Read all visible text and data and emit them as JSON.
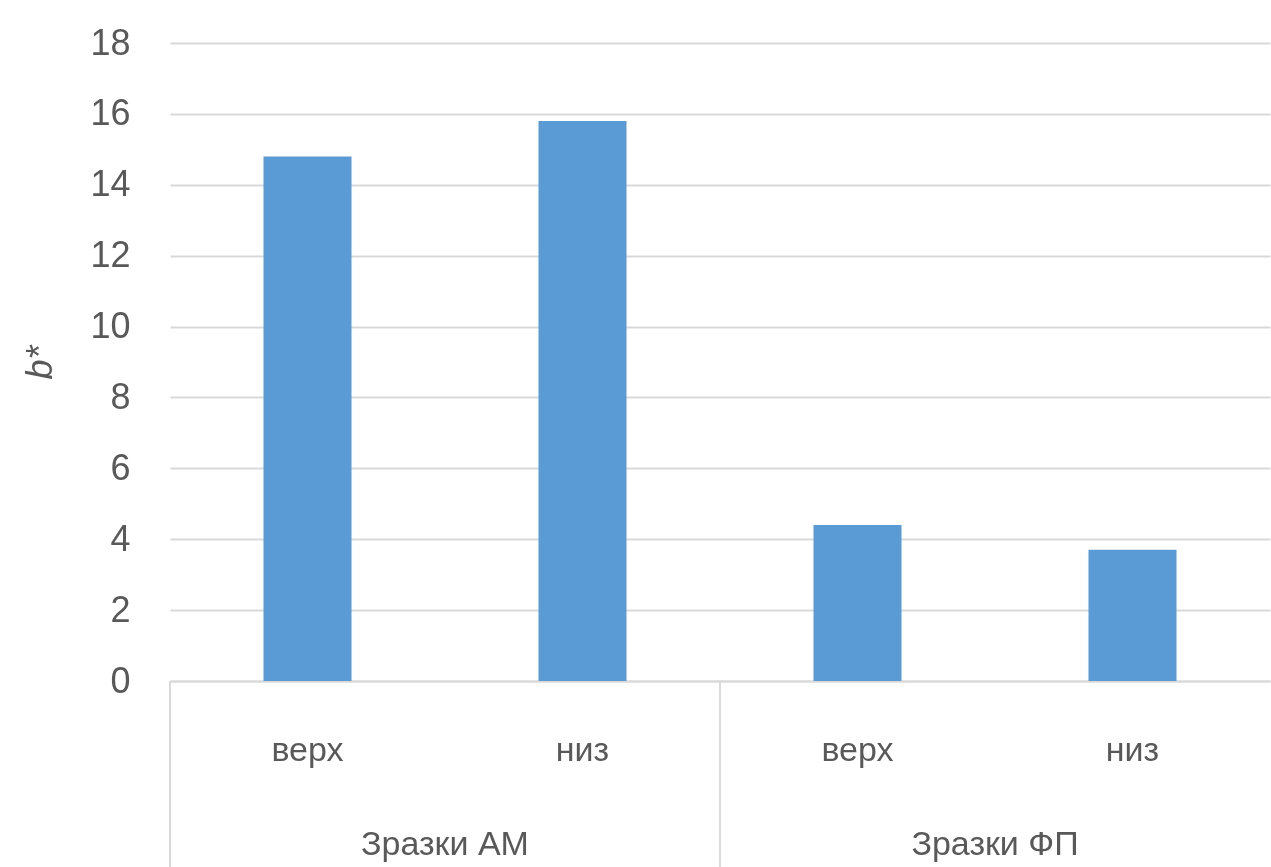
{
  "chart_data": {
    "type": "bar",
    "categories": [
      "верх",
      "низ",
      "верх",
      "низ"
    ],
    "values": [
      14.8,
      15.8,
      4.4,
      3.7
    ],
    "color": "#5b9bd5",
    "ylabel": "b*",
    "ylim": [
      0,
      18
    ],
    "yticks": [
      0,
      2,
      4,
      6,
      8,
      10,
      12,
      14,
      16,
      18
    ],
    "grid": "y",
    "annotations": [
      "Зразки АМ",
      "Зразки ФП"
    ]
  }
}
